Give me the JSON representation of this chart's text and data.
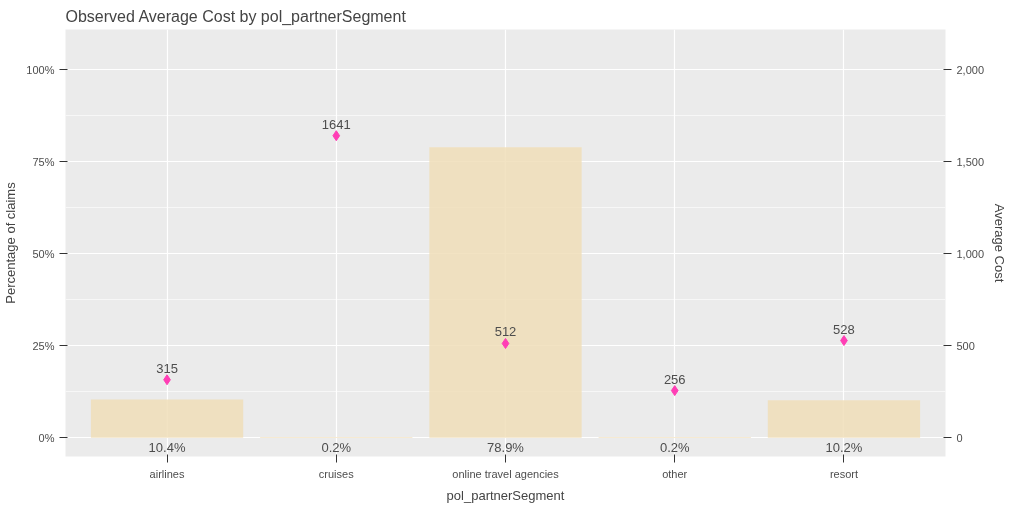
{
  "chart_data": {
    "type": "bar",
    "title": "Observed Average Cost by pol_partnerSegment",
    "xlabel": "pol_partnerSegment",
    "ylabel": "Percentage of claims",
    "y2label": "Average Cost",
    "categories": [
      "airlines",
      "cruises",
      "online travel agencies",
      "other",
      "resort"
    ],
    "series": [
      {
        "color": "#f0deb9",
        "values": [
          10.4,
          0.2,
          78.9,
          0.2,
          10.2
        ],
        "value_labels": [
          "10.4%",
          "0.2%",
          "78.9%",
          "0.2%",
          "10.2%"
        ]
      },
      {
        "type": "scatter",
        "axis": "y2",
        "color": "#ff3eb5",
        "marker": "diamond",
        "values": [
          315,
          1641,
          512,
          256,
          528
        ],
        "value_labels": [
          "315",
          "1641",
          "512",
          "256",
          "528"
        ]
      }
    ],
    "ylim": [
      -5.1,
      110.9
    ],
    "yticks": [
      {
        "value": 0,
        "label": "0%"
      },
      {
        "value": 25,
        "label": "25%"
      },
      {
        "value": 50,
        "label": "50%"
      },
      {
        "value": 75,
        "label": "75%"
      },
      {
        "value": 100,
        "label": "100%"
      }
    ],
    "y2lim": [
      -102,
      2218
    ],
    "y2ticks": [
      0,
      500,
      {
        "value": 1000,
        "label": "1,000"
      },
      {
        "value": 1500,
        "label": "1,500"
      },
      {
        "value": 2000,
        "label": "2,000"
      }
    ],
    "grid": true
  }
}
